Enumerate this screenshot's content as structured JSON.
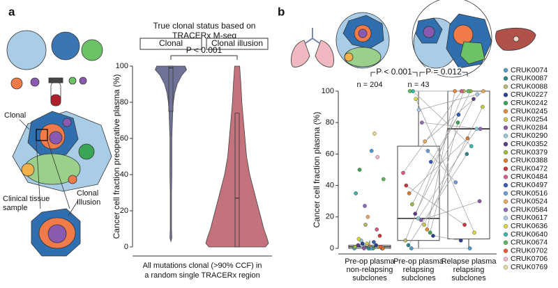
{
  "panels": {
    "labels": [
      "a",
      "b"
    ],
    "a_illustration": {
      "clonal": "Clonal",
      "tissue": [
        "Clinical tissue",
        "sample"
      ],
      "illusion": [
        "Clonal",
        "Illusion"
      ]
    }
  },
  "chart_data": [
    {
      "type": "violin",
      "header": [
        "True clonal status based on",
        "TRACERx M-seq"
      ],
      "categories": [
        "Clonal",
        "Clonal illusion"
      ],
      "y_label": "Cancer cell fraction preoperative plasma (%)",
      "x_label": [
        "All mutations clonal (>90% CCF) in",
        "a random single TRACERx region"
      ],
      "annotation": "P < 0.001",
      "ylim": [
        0,
        100
      ],
      "yticks": [
        0,
        20,
        40,
        60,
        80,
        100
      ],
      "violins": [
        {
          "color": "#6f7398",
          "y": [
            3,
            5,
            10,
            20,
            30,
            40,
            50,
            60,
            70,
            75,
            80,
            85,
            90,
            95,
            98,
            100
          ],
          "width": [
            0,
            0.03,
            0.02,
            0.02,
            0.02,
            0.03,
            0.03,
            0.03,
            0.05,
            0.06,
            0.08,
            0.12,
            0.2,
            0.35,
            0.5,
            0.45
          ],
          "box": {
            "q1": 75,
            "median": 99,
            "q3": 100
          }
        },
        {
          "color": "#c4737c",
          "y": [
            0,
            2,
            5,
            10,
            20,
            30,
            40,
            50,
            60,
            70,
            80,
            90,
            95,
            100
          ],
          "width": [
            0.9,
            1.0,
            0.95,
            0.85,
            0.7,
            0.55,
            0.4,
            0.3,
            0.25,
            0.2,
            0.15,
            0.12,
            0.1,
            0.08
          ],
          "box": {
            "q1": 0,
            "median": 27,
            "q3": 74
          }
        }
      ]
    },
    {
      "type": "box",
      "y_label": "Cancer cell fraction plasma (%)",
      "categories": [
        [
          "Pre-op plasma",
          "non-relapsing",
          "subclones"
        ],
        [
          "Pre-op plasma",
          "relapsing",
          "subclones"
        ],
        [
          "Relapse plasma",
          "relapsing",
          "subclones"
        ]
      ],
      "ylim": [
        0,
        100
      ],
      "yticks": [
        0,
        20,
        40,
        60,
        80,
        100
      ],
      "annotations": [
        "P < 0.001",
        "P = 0.012"
      ],
      "n_labels": [
        "n = 204",
        "n = 43"
      ],
      "lines_between": [
        1,
        2
      ],
      "groups": [
        {
          "box": {
            "min": 0,
            "q1": 0,
            "median": 1,
            "q3": 2,
            "max": 5
          },
          "points": [
            0,
            0,
            1,
            2,
            0,
            1,
            3,
            0,
            5,
            2,
            1,
            0,
            8,
            12,
            4,
            0,
            20,
            27,
            2,
            6,
            35,
            44,
            1,
            58,
            73,
            62,
            0,
            15,
            3,
            50
          ],
          "colors": [
            "#4a9cc9",
            "#2a8a8a",
            "#b5b86a",
            "#2e3f8f",
            "#3aa655",
            "#e08a3a",
            "#c8c84a",
            "#8a5aa8",
            "#8ec8d8",
            "#5a3a8a",
            "#9ab83a",
            "#d87a2a",
            "#c83a3a",
            "#d85a8a",
            "#3a5ab8",
            "#6a9ad8",
            "#e8a85a",
            "#8a6ab8",
            "#a8c8e8",
            "#d8d83a",
            "#3ab8a8",
            "#5ab85a",
            "#e85a3a",
            "#f0b8c8",
            "#e8d89a",
            "#4a9cc9",
            "#2a8a8a",
            "#b5b86a",
            "#2e3f8f",
            "#3aa655"
          ]
        },
        {
          "box": {
            "min": 0,
            "q1": 5,
            "median": 19,
            "q3": 65,
            "max": 100
          },
          "points": [
            0,
            2,
            5,
            8,
            10,
            12,
            15,
            18,
            19,
            22,
            28,
            35,
            40,
            48,
            55,
            62,
            68,
            80,
            88,
            95,
            100,
            100
          ],
          "colors": [
            "#4a9cc9",
            "#2a8a8a",
            "#b5b86a",
            "#2e3f8f",
            "#3aa655",
            "#e08a3a",
            "#c8c84a",
            "#8a5aa8",
            "#8ec8d8",
            "#5a3a8a",
            "#9ab83a",
            "#d87a2a",
            "#c83a3a",
            "#d85a8a",
            "#3a5ab8",
            "#6a9ad8",
            "#e8a85a",
            "#8a6ab8",
            "#a8c8e8",
            "#d8d83a",
            "#3ab8a8",
            "#5ab85a"
          ]
        },
        {
          "box": {
            "min": 0,
            "q1": 6,
            "median": 76,
            "q3": 100,
            "max": 100
          },
          "points": [
            0,
            60,
            100,
            5,
            80,
            100,
            90,
            30,
            76,
            95,
            100,
            70,
            15,
            100,
            85,
            42,
            100,
            76,
            98,
            10,
            65,
            100
          ],
          "colors": [
            "#4a9cc9",
            "#2a8a8a",
            "#b5b86a",
            "#2e3f8f",
            "#3aa655",
            "#e08a3a",
            "#c8c84a",
            "#8a5aa8",
            "#8ec8d8",
            "#5a3a8a",
            "#9ab83a",
            "#d87a2a",
            "#c83a3a",
            "#d85a8a",
            "#3a5ab8",
            "#6a9ad8",
            "#e8a85a",
            "#8a6ab8",
            "#a8c8e8",
            "#d8d83a",
            "#3ab8a8",
            "#5ab85a"
          ]
        }
      ],
      "legend": [
        {
          "name": "CRUK0074",
          "color": "#4a9cc9"
        },
        {
          "name": "CRUK0087",
          "color": "#2a8a8a"
        },
        {
          "name": "CRUK0088",
          "color": "#b5b86a"
        },
        {
          "name": "CRUK0227",
          "color": "#2e3f8f"
        },
        {
          "name": "CRUK0242",
          "color": "#3aa655"
        },
        {
          "name": "CRUK0245",
          "color": "#e08a3a"
        },
        {
          "name": "CRUK0254",
          "color": "#c8c84a"
        },
        {
          "name": "CRUK0284",
          "color": "#8a5aa8"
        },
        {
          "name": "CRUK0290",
          "color": "#8ec8d8"
        },
        {
          "name": "CRUK0352",
          "color": "#5a3a8a"
        },
        {
          "name": "CRUK0379",
          "color": "#9ab83a"
        },
        {
          "name": "CRUK0388",
          "color": "#d87a2a"
        },
        {
          "name": "CRUK0472",
          "color": "#c83a3a"
        },
        {
          "name": "CRUK0484",
          "color": "#d85a8a"
        },
        {
          "name": "CRUK0497",
          "color": "#3a5ab8"
        },
        {
          "name": "CRUK0516",
          "color": "#6a9ad8"
        },
        {
          "name": "CRUK0524",
          "color": "#e8a85a"
        },
        {
          "name": "CRUK0584",
          "color": "#8a6ab8"
        },
        {
          "name": "CRUK0617",
          "color": "#a8c8e8"
        },
        {
          "name": "CRUK0636",
          "color": "#d8d83a"
        },
        {
          "name": "CRUK0640",
          "color": "#3ab8a8"
        },
        {
          "name": "CRUK0674",
          "color": "#5ab85a"
        },
        {
          "name": "CRUK0702",
          "color": "#e85a3a"
        },
        {
          "name": "CRUK0706",
          "color": "#f0b8c8"
        },
        {
          "name": "CRUK0769",
          "color": "#e8d89a"
        }
      ]
    }
  ]
}
